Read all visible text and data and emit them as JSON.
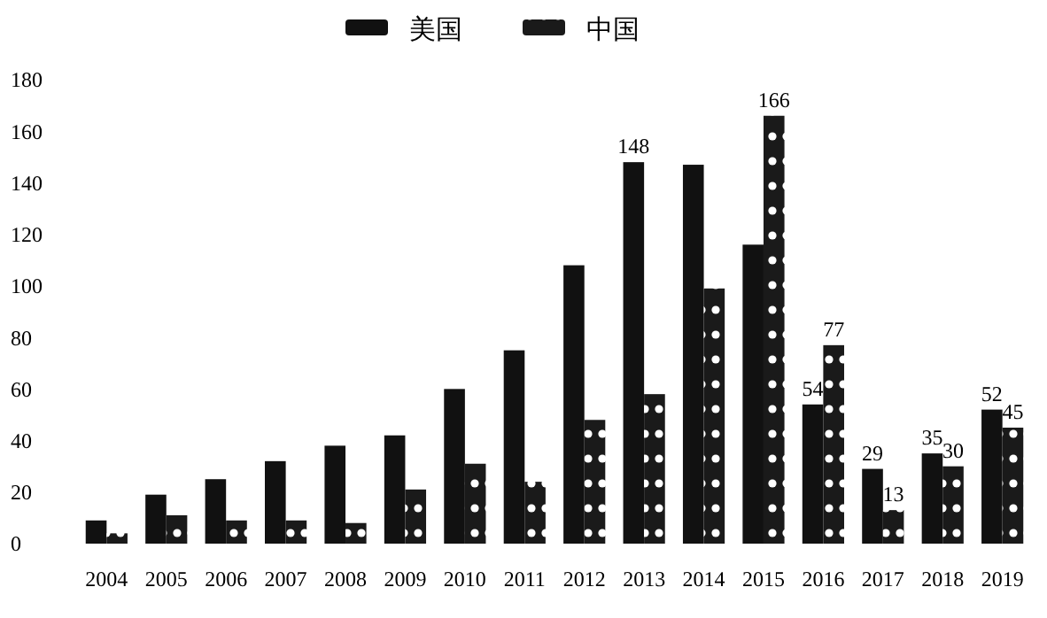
{
  "chart_data": {
    "type": "bar",
    "categories": [
      "2004",
      "2005",
      "2006",
      "2007",
      "2008",
      "2009",
      "2010",
      "2011",
      "2012",
      "2013",
      "2014",
      "2015",
      "2016",
      "2017",
      "2018",
      "2019"
    ],
    "series": [
      {
        "name": "美国",
        "color": "#111111",
        "values": [
          9,
          19,
          25,
          32,
          38,
          42,
          60,
          75,
          108,
          148,
          147,
          116,
          54,
          29,
          35,
          52
        ],
        "value_labels": [
          null,
          null,
          null,
          null,
          null,
          null,
          null,
          null,
          null,
          "148",
          null,
          null,
          "54",
          "29",
          "35",
          "52"
        ]
      },
      {
        "name": "中国",
        "color": "#1a1a1a",
        "values": [
          4,
          11,
          9,
          9,
          8,
          21,
          31,
          24,
          48,
          58,
          99,
          166,
          77,
          13,
          30,
          45
        ],
        "value_labels": [
          null,
          null,
          null,
          null,
          null,
          null,
          null,
          null,
          null,
          null,
          null,
          "166",
          "77",
          "13",
          "30",
          "45"
        ]
      }
    ],
    "ylim": [
      0,
      180
    ],
    "yticks": [
      0,
      20,
      40,
      60,
      80,
      100,
      120,
      140,
      160,
      180
    ],
    "grid": false,
    "legend": "top"
  }
}
